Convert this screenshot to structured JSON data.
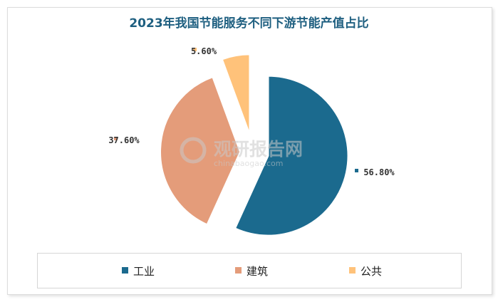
{
  "chart_data": {
    "type": "pie",
    "title": "2023年我国节能服务不同下游节能产值占比",
    "series": [
      {
        "name": "工业",
        "value": 56.8,
        "label": "56.80%",
        "color": "#1b6a8e"
      },
      {
        "name": "建筑",
        "value": 37.6,
        "label": "37.60%",
        "color": "#e49c7a"
      },
      {
        "name": "公共",
        "value": 5.6,
        "label": "5.60%",
        "color": "#ffc27a"
      }
    ],
    "legend_position": "bottom",
    "exploded": true
  },
  "watermark": {
    "cn": "观研报告网",
    "en": "chinabaogao.com"
  }
}
